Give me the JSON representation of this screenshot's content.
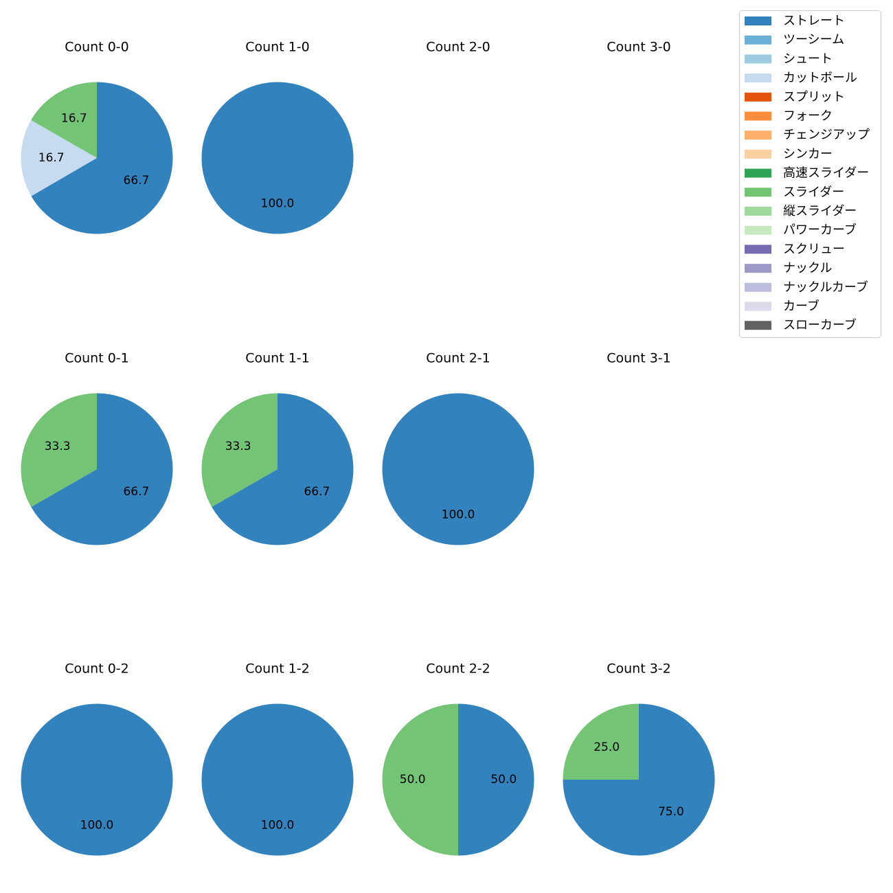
{
  "chart_data": {
    "type": "pie",
    "series_legend": [
      {
        "name": "ストレート",
        "color": "#3182bd"
      },
      {
        "name": "ツーシーム",
        "color": "#6baed6"
      },
      {
        "name": "シュート",
        "color": "#9ecae1"
      },
      {
        "name": "カットボール",
        "color": "#c6dbef"
      },
      {
        "name": "スプリット",
        "color": "#e6550d"
      },
      {
        "name": "フォーク",
        "color": "#fd8d3c"
      },
      {
        "name": "チェンジアップ",
        "color": "#fdae6b"
      },
      {
        "name": "シンカー",
        "color": "#fdd0a2"
      },
      {
        "name": "高速スライダー",
        "color": "#31a354"
      },
      {
        "name": "スライダー",
        "color": "#74c476"
      },
      {
        "name": "縦スライダー",
        "color": "#a1d99b"
      },
      {
        "name": "パワーカーブ",
        "color": "#c7e9c0"
      },
      {
        "name": "スクリュー",
        "color": "#756bb1"
      },
      {
        "name": "ナックル",
        "color": "#9e9ac8"
      },
      {
        "name": "ナックルカーブ",
        "color": "#bcbddc"
      },
      {
        "name": "カーブ",
        "color": "#dadaeb"
      },
      {
        "name": "スローカーブ",
        "color": "#636363"
      }
    ],
    "panels": [
      {
        "title": "Count 0-0",
        "slices": [
          {
            "pitch": "ストレート",
            "value": 66.7
          },
          {
            "pitch": "カットボール",
            "value": 16.7
          },
          {
            "pitch": "スライダー",
            "value": 16.7
          }
        ]
      },
      {
        "title": "Count 1-0",
        "slices": [
          {
            "pitch": "ストレート",
            "value": 100.0
          }
        ]
      },
      {
        "title": "Count 2-0",
        "slices": []
      },
      {
        "title": "Count 3-0",
        "slices": []
      },
      {
        "title": "Count 0-1",
        "slices": [
          {
            "pitch": "ストレート",
            "value": 66.7
          },
          {
            "pitch": "スライダー",
            "value": 33.3
          }
        ]
      },
      {
        "title": "Count 1-1",
        "slices": [
          {
            "pitch": "ストレート",
            "value": 66.7
          },
          {
            "pitch": "スライダー",
            "value": 33.3
          }
        ]
      },
      {
        "title": "Count 2-1",
        "slices": [
          {
            "pitch": "ストレート",
            "value": 100.0
          }
        ]
      },
      {
        "title": "Count 3-1",
        "slices": []
      },
      {
        "title": "Count 0-2",
        "slices": [
          {
            "pitch": "ストレート",
            "value": 100.0
          }
        ]
      },
      {
        "title": "Count 1-2",
        "slices": [
          {
            "pitch": "ストレート",
            "value": 100.0
          }
        ]
      },
      {
        "title": "Count 2-2",
        "slices": [
          {
            "pitch": "ストレート",
            "value": 50.0
          },
          {
            "pitch": "スライダー",
            "value": 50.0
          }
        ]
      },
      {
        "title": "Count 3-2",
        "slices": [
          {
            "pitch": "ストレート",
            "value": 75.0
          },
          {
            "pitch": "スライダー",
            "value": 25.0
          }
        ]
      }
    ]
  }
}
